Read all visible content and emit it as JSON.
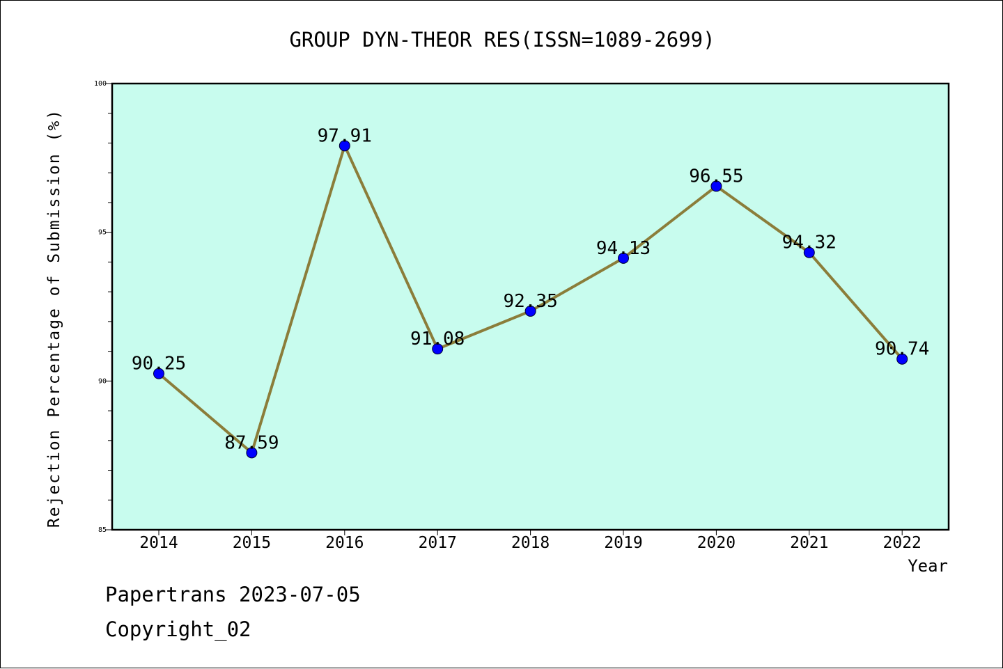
{
  "chart_data": {
    "type": "line",
    "title": "GROUP DYN-THEOR RES(ISSN=1089-2699)",
    "xlabel": "Year",
    "ylabel": "Rejection Percentage of Submission (%)",
    "categories": [
      "2014",
      "2015",
      "2016",
      "2017",
      "2018",
      "2019",
      "2020",
      "2021",
      "2022"
    ],
    "series": [
      {
        "values": [
          90.25,
          87.59,
          97.91,
          91.08,
          92.35,
          94.13,
          96.55,
          94.32,
          90.74
        ],
        "data_labels": [
          "90.25",
          "87.59",
          "97.91",
          "91.08",
          "92.35",
          "94.13",
          "96.55",
          "94.32",
          "90.74"
        ]
      }
    ],
    "ylim": [
      85,
      100
    ],
    "y_ticks": [
      "85",
      "90",
      "95",
      "100"
    ],
    "y_minor_step": 1,
    "grid": false,
    "colors": {
      "plot_background": "#c8fcee",
      "line": "#8b7d3a",
      "marker": "#0000ff"
    }
  },
  "footer": {
    "date_line": "Papertrans 2023-07-05",
    "copyright_line": "Copyright_02"
  }
}
